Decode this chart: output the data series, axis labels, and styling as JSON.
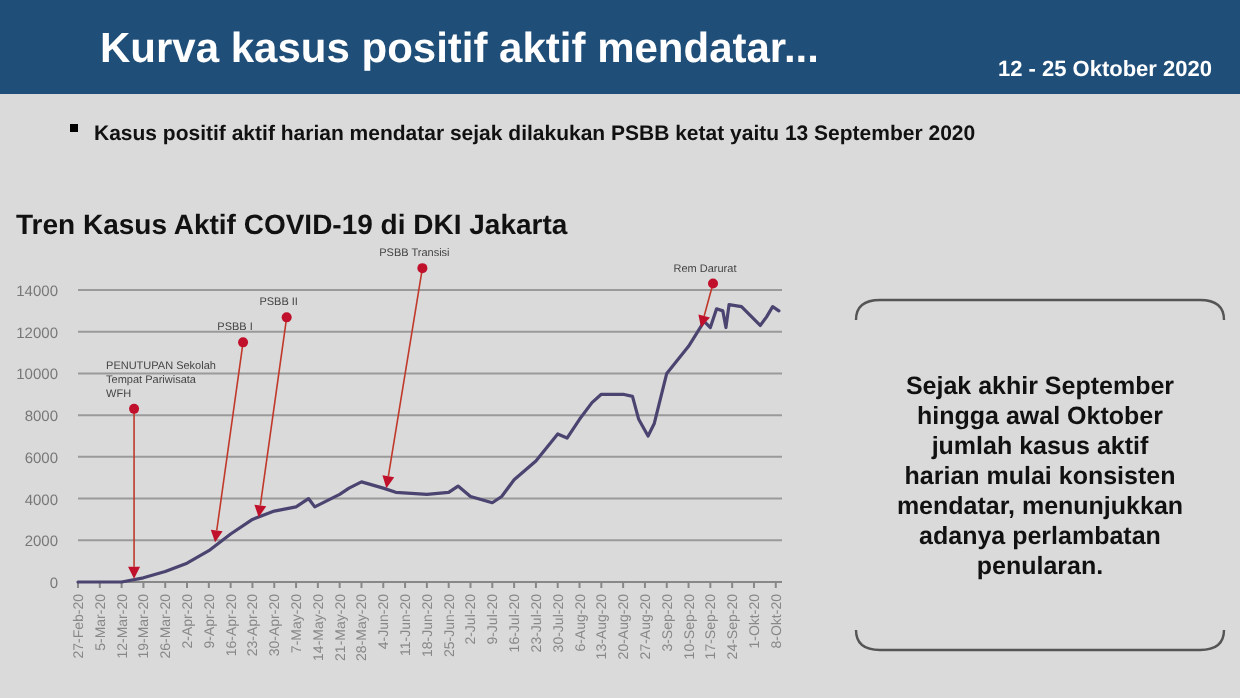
{
  "chart_data": {
    "type": "line",
    "title": "Kurva kasus positif aktif mendatar...",
    "subtitle": "Tren Kasus Aktif COVID-19 di DKI Jakarta",
    "annotations": [
      "12 -  25 Oktober 2020",
      "Kasus positif aktif harian mendatar sejak dilakukan PSBB ketat yaitu 13 September 2020",
      "Sejak akhir September hingga awal Oktober jumlah kasus aktif harian mulai konsisten mendatar, menunjukkan adanya perlambatan penularan.",
      {
        "text": "PENUTUPAN Sekolah Tempat Pariwisata WFH",
        "x": "2020-03-16",
        "y": 150
      },
      {
        "text": "PSBB I",
        "x": "2020-04-11",
        "y": 1900
      },
      {
        "text": "PSBB II",
        "x": "2020-04-25",
        "y": 3100
      },
      {
        "text": "PSBB Transisi",
        "x": "2020-06-05",
        "y": 4500
      },
      {
        "text": "Rem Darurat",
        "x": "2020-09-14",
        "y": 12200
      }
    ],
    "series": [
      {
        "color": "#4b4470",
        "x": [
          "2020-02-27",
          "2020-03-05",
          "2020-03-12",
          "2020-03-19",
          "2020-03-26",
          "2020-04-02",
          "2020-04-09",
          "2020-04-16",
          "2020-04-23",
          "2020-04-30",
          "2020-05-07",
          "2020-05-11",
          "2020-05-13",
          "2020-05-21",
          "2020-05-24",
          "2020-05-28",
          "2020-06-04",
          "2020-06-08",
          "2020-06-18",
          "2020-06-25",
          "2020-06-28",
          "2020-07-02",
          "2020-07-09",
          "2020-07-12",
          "2020-07-16",
          "2020-07-23",
          "2020-07-30",
          "2020-08-02",
          "2020-08-06",
          "2020-08-10",
          "2020-08-13",
          "2020-08-20",
          "2020-08-23",
          "2020-08-25",
          "2020-08-28",
          "2020-08-30",
          "2020-09-03",
          "2020-09-10",
          "2020-09-15",
          "2020-09-17",
          "2020-09-19",
          "2020-09-21",
          "2020-09-22",
          "2020-09-23",
          "2020-09-27",
          "2020-09-29",
          "2020-10-03",
          "2020-10-05",
          "2020-10-07",
          "2020-10-09"
        ],
        "values": [
          0,
          0,
          0,
          200,
          500,
          900,
          1500,
          2300,
          3000,
          3400,
          3600,
          4000,
          3600,
          4200,
          4500,
          4800,
          4500,
          4300,
          4200,
          4300,
          4600,
          4100,
          3800,
          4100,
          4900,
          5800,
          7100,
          6900,
          7800,
          8600,
          9000,
          9000,
          8900,
          7800,
          7000,
          7600,
          10000,
          11300,
          12500,
          12200,
          13100,
          13000,
          12200,
          13300,
          13200,
          12900,
          12300,
          12700,
          13200,
          13000
        ]
      }
    ],
    "xlim": [
      "2020-02-27",
      "2020-10-10"
    ],
    "xticks": [
      {
        "value": "2020-02-27",
        "label": "27-Feb-20"
      },
      {
        "value": "2020-03-05",
        "label": "5-Mar-20"
      },
      {
        "value": "2020-03-12",
        "label": "12-Mar-20"
      },
      {
        "value": "2020-03-19",
        "label": "19-Mar-20"
      },
      {
        "value": "2020-03-26",
        "label": "26-Mar-20"
      },
      {
        "value": "2020-04-02",
        "label": "2-Apr-20"
      },
      {
        "value": "2020-04-09",
        "label": "9-Apr-20"
      },
      {
        "value": "2020-04-16",
        "label": "16-Apr-20"
      },
      {
        "value": "2020-04-23",
        "label": "23-Apr-20"
      },
      {
        "value": "2020-04-30",
        "label": "30-Apr-20"
      },
      {
        "value": "2020-05-07",
        "label": "7-May-20"
      },
      {
        "value": "2020-05-14",
        "label": "14-May-20"
      },
      {
        "value": "2020-05-21",
        "label": "21-May-20"
      },
      {
        "value": "2020-05-28",
        "label": "28-May-20"
      },
      {
        "value": "2020-06-04",
        "label": "4-Jun-20"
      },
      {
        "value": "2020-06-11",
        "label": "11-Jun-20"
      },
      {
        "value": "2020-06-18",
        "label": "18-Jun-20"
      },
      {
        "value": "2020-06-25",
        "label": "25-Jun-20"
      },
      {
        "value": "2020-07-02",
        "label": "2-Jul-20"
      },
      {
        "value": "2020-07-09",
        "label": "9-Jul-20"
      },
      {
        "value": "2020-07-16",
        "label": "16-Jul-20"
      },
      {
        "value": "2020-07-23",
        "label": "23-Jul-20"
      },
      {
        "value": "2020-07-30",
        "label": "30-Jul-20"
      },
      {
        "value": "2020-08-06",
        "label": "6-Aug-20"
      },
      {
        "value": "2020-08-13",
        "label": "13-Aug-20"
      },
      {
        "value": "2020-08-20",
        "label": "20-Aug-20"
      },
      {
        "value": "2020-08-27",
        "label": "27-Aug-20"
      },
      {
        "value": "2020-09-03",
        "label": "3-Sep-20"
      },
      {
        "value": "2020-09-10",
        "label": "10-Sep-20"
      },
      {
        "value": "2020-09-17",
        "label": "17-Sep-20"
      },
      {
        "value": "2020-09-24",
        "label": "24-Sep-20"
      },
      {
        "value": "2020-10-01",
        "label": "1-Okt-20"
      },
      {
        "value": "2020-10-08",
        "label": "8-Okt-20"
      }
    ],
    "ylim": [
      0,
      14000
    ],
    "yticks": [
      0,
      2000,
      4000,
      6000,
      8000,
      10000,
      12000,
      14000
    ],
    "grid": "y",
    "marker": "none",
    "line_style": "solid"
  }
}
